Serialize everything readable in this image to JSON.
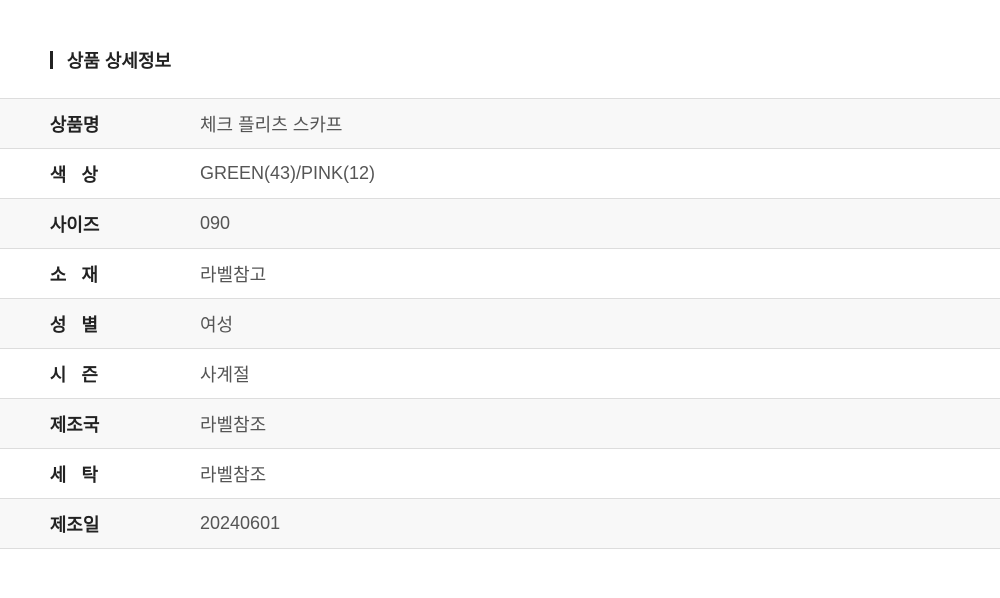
{
  "title": "상품 상세정보",
  "rows": [
    {
      "label": "상품명",
      "value": "체크 플리츠 스카프"
    },
    {
      "label": "색   상",
      "value": "GREEN(43)/PINK(12)"
    },
    {
      "label": "사이즈",
      "value": "090"
    },
    {
      "label": "소   재",
      "value": "라벨참고"
    },
    {
      "label": "성   별",
      "value": "여성"
    },
    {
      "label": "시   즌",
      "value": "사계절"
    },
    {
      "label": "제조국",
      "value": "라벨참조"
    },
    {
      "label": "세   탁",
      "value": "라벨참조"
    },
    {
      "label": "제조일",
      "value": "20240601"
    }
  ]
}
